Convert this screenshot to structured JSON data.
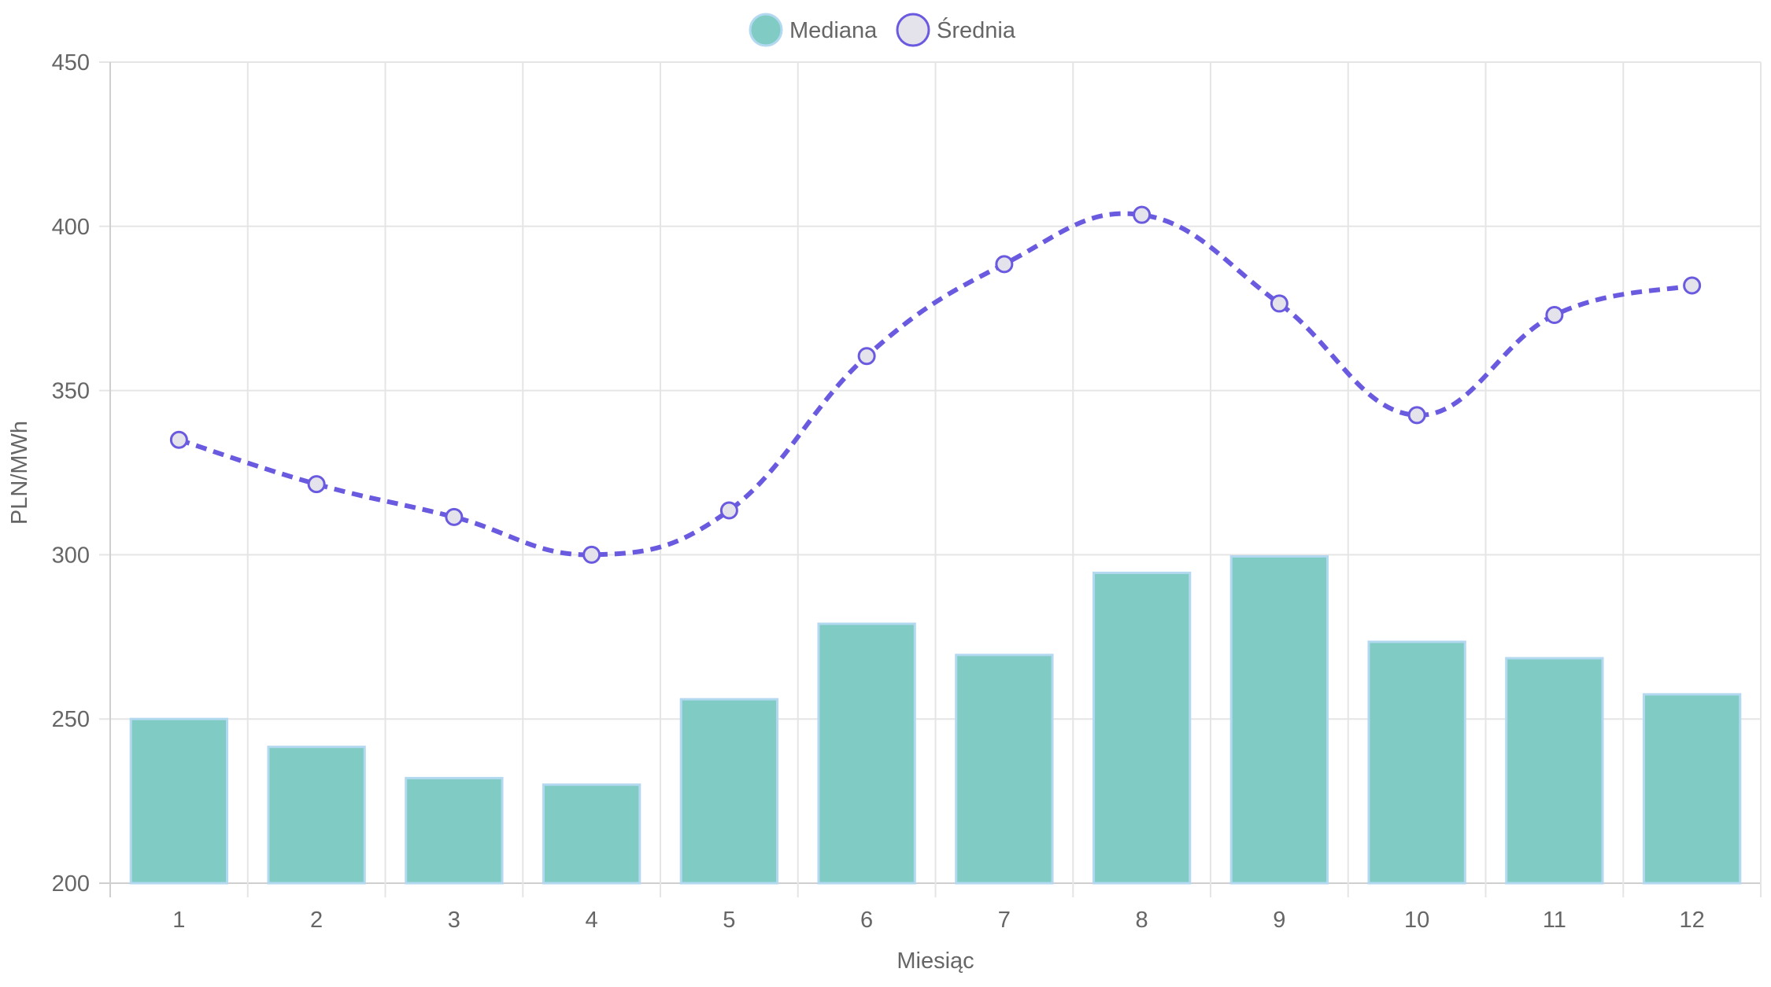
{
  "chart_data": {
    "type": "bar",
    "categories": [
      "1",
      "2",
      "3",
      "4",
      "5",
      "6",
      "7",
      "8",
      "9",
      "10",
      "11",
      "12"
    ],
    "series": [
      {
        "name": "Mediana",
        "type": "bar",
        "values": [
          250,
          241.5,
          232,
          230,
          256,
          279,
          269.5,
          294.5,
          299.5,
          273.5,
          268.5,
          257.5
        ],
        "color": "#80cbc4",
        "border_color": "#b3d9f0"
      },
      {
        "name": "Średnia",
        "type": "line",
        "line_style": "dashed",
        "values": [
          335,
          321.5,
          311.5,
          300,
          313.5,
          360.5,
          388.5,
          403.5,
          376.5,
          342.5,
          373,
          382
        ],
        "color": "#6a5ae0",
        "point_fill": "#e4e2ea"
      }
    ],
    "xlabel": "Miesiąc",
    "ylabel": "PLN/MWh",
    "ylim": [
      200,
      450
    ],
    "yticks": [
      200,
      250,
      300,
      350,
      400,
      450
    ],
    "grid": true,
    "legend_position": "top-center"
  }
}
